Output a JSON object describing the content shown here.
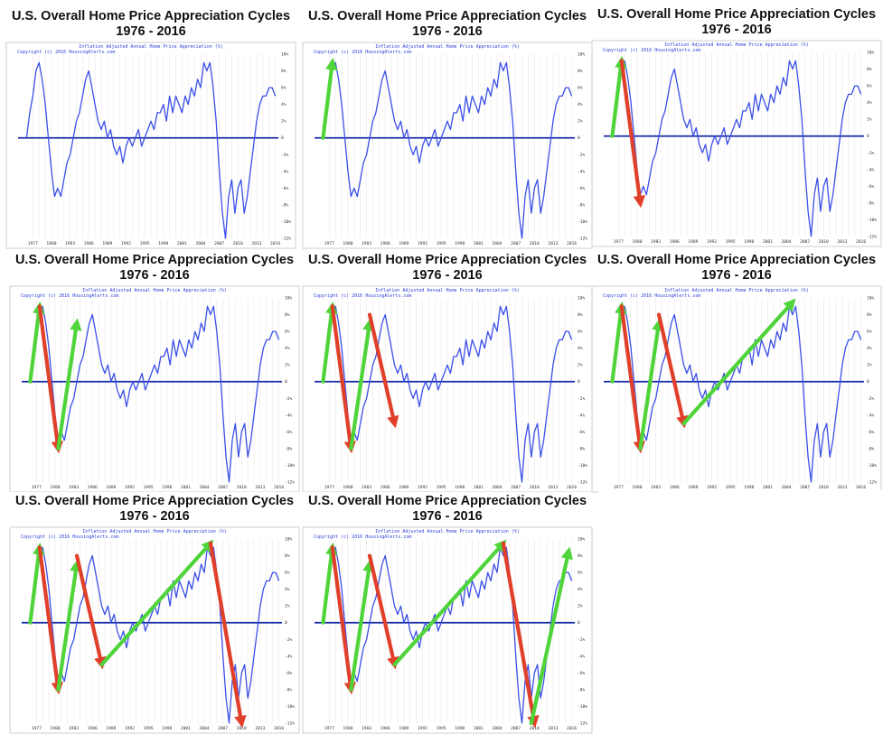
{
  "panel_title": "U.S. Overall Home Price Appreciation Cycles",
  "panel_years": "1976 - 2016",
  "chart_caption": "Inflation Adjusted Annual Home Price Appreciation (%)",
  "copyright": "Copyright (c) 2016 HousingAlerts.com",
  "colors": {
    "line": "#3b4fe8",
    "zero_line": "#1c2fa8",
    "up_arrow": "#4fd43a",
    "down_arrow": "#e0402a"
  },
  "chart_data": {
    "type": "line",
    "x": [
      1976,
      1976.5,
      1977,
      1977.5,
      1978,
      1978.5,
      1979,
      1979.5,
      1980,
      1980.5,
      1981,
      1981.5,
      1982,
      1982.5,
      1983,
      1983.5,
      1984,
      1984.5,
      1985,
      1985.5,
      1986,
      1986.5,
      1987,
      1987.5,
      1988,
      1988.5,
      1989,
      1989.5,
      1990,
      1990.5,
      1991,
      1991.5,
      1992,
      1992.5,
      1993,
      1993.5,
      1994,
      1994.5,
      1995,
      1995.5,
      1996,
      1996.5,
      1997,
      1997.5,
      1998,
      1998.5,
      1999,
      1999.5,
      2000,
      2000.5,
      2001,
      2001.5,
      2002,
      2002.5,
      2003,
      2003.5,
      2004,
      2004.5,
      2005,
      2005.5,
      2006,
      2006.5,
      2007,
      2007.5,
      2008,
      2008.5,
      2009,
      2009.5,
      2010,
      2010.5,
      2011,
      2011.5,
      2012,
      2012.5,
      2013,
      2013.5,
      2014,
      2014.5,
      2015,
      2015.5,
      2016
    ],
    "y": [
      0,
      3,
      5,
      8,
      9,
      7,
      4,
      0,
      -4,
      -7,
      -6,
      -7,
      -5,
      -3,
      -2,
      0,
      2,
      3,
      5,
      7,
      8,
      6,
      4,
      2,
      1,
      2,
      0,
      1,
      -1,
      -2,
      -1,
      -3,
      -1,
      0,
      -1,
      0,
      1,
      -1,
      0,
      1,
      2,
      1,
      3,
      3,
      4,
      2,
      5,
      3,
      5,
      4,
      3,
      5,
      4,
      6,
      5,
      7,
      6,
      9,
      8,
      9,
      6,
      2,
      -4,
      -9,
      -12,
      -7,
      -5,
      -9,
      -6,
      -5,
      -9,
      -7,
      -4,
      -1,
      2,
      4,
      5,
      5,
      6,
      6,
      5
    ],
    "xlim": [
      1975.5,
      2016.5
    ],
    "ylim": [
      -12,
      10
    ],
    "x_ticks": [
      "1977",
      "1980",
      "1983",
      "1986",
      "1989",
      "1992",
      "1995",
      "1998",
      "2001",
      "2004",
      "2007",
      "2010",
      "2013",
      "2016"
    ],
    "y_ticks": [
      "10%",
      "8%",
      "6%",
      "4%",
      "2%",
      "0",
      "-2%",
      "-4%",
      "-6%",
      "-8%",
      "-10%",
      "-12%"
    ]
  },
  "cycle_arrows": [
    {
      "from": [
        1976,
        0
      ],
      "to": [
        1977.5,
        9
      ],
      "dir": "up"
    },
    {
      "from": [
        1977.5,
        9
      ],
      "to": [
        1980.5,
        -8
      ],
      "dir": "down"
    },
    {
      "from": [
        1980.5,
        -8
      ],
      "to": [
        1983.5,
        7
      ],
      "dir": "up"
    },
    {
      "from": [
        1983.5,
        8
      ],
      "to": [
        1987.5,
        -5
      ],
      "dir": "down"
    },
    {
      "from": [
        1987.5,
        -5
      ],
      "to": [
        2005,
        9.5
      ],
      "dir": "up"
    },
    {
      "from": [
        2005,
        9.5
      ],
      "to": [
        2010,
        -12
      ],
      "dir": "down"
    },
    {
      "from": [
        2009.5,
        -12
      ],
      "to": [
        2015.5,
        8.5
      ],
      "dir": "up"
    }
  ],
  "panel_arrow_counts": [
    0,
    1,
    2,
    3,
    4,
    5,
    6,
    7
  ]
}
